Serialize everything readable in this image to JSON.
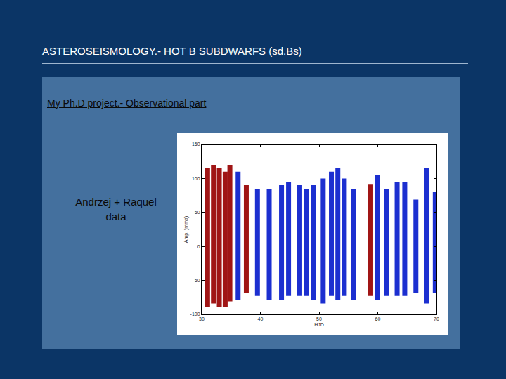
{
  "slide": {
    "title": "ASTEROSEISMOLOGY.- HOT B SUBDWARFS (sd.Bs)",
    "subtitle": "My Ph.D project.- Observational part",
    "side_text": [
      "Andrzej + Raquel",
      "data"
    ]
  },
  "chart_data": {
    "type": "range",
    "xlabel": "HJD",
    "ylabel": "Amp. (mma)",
    "xlim": [
      30,
      70
    ],
    "xticks": [
      30,
      40,
      50,
      60,
      70
    ],
    "ylim": [
      -100,
      150
    ],
    "yticks": [
      -100,
      -50,
      0,
      50,
      100,
      150
    ],
    "grid": false,
    "series": [
      {
        "color": "#a01515",
        "x": [
          31.0,
          32.0,
          33.0,
          34.0,
          34.8,
          37.6,
          58.8
        ],
        "high": [
          115,
          120,
          115,
          110,
          120,
          90,
          92
        ],
        "low": [
          -89,
          -84,
          -89,
          -89,
          -81,
          -68,
          -73
        ]
      },
      {
        "color": "#1c2fd0",
        "x": [
          36.2,
          39.5,
          41.5,
          43.6,
          44.8,
          46.7,
          47.8,
          49.1,
          50.7,
          52.1,
          53.2,
          54.3,
          55.9,
          60.0,
          61.5,
          63.3,
          64.6,
          66.5,
          68.3,
          69.8
        ],
        "high": [
          110,
          85,
          85,
          90,
          95,
          90,
          85,
          90,
          100,
          110,
          115,
          100,
          85,
          105,
          85,
          95,
          95,
          69,
          115,
          80
        ],
        "low": [
          -79,
          -73,
          -79,
          -79,
          -73,
          -73,
          -73,
          -79,
          -84,
          -73,
          -79,
          -73,
          -79,
          -79,
          -73,
          -73,
          -73,
          -68,
          -84,
          -68
        ]
      }
    ]
  }
}
